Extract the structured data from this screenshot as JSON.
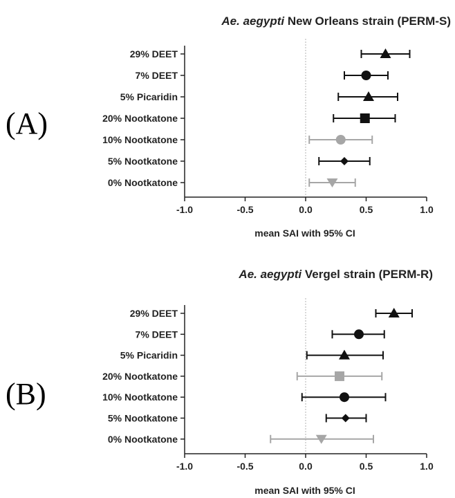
{
  "chart_data": [
    {
      "type": "forest",
      "panel_label": "(A)",
      "title_italic": "Ae. aegypti",
      "title_rest": " New Orleans strain (PERM-S)",
      "xlabel": "mean SAI with 95% CI",
      "xlim": [
        -1.0,
        1.0
      ],
      "xticks": [
        "-1.0",
        "-0.5",
        "0.0",
        "0.5",
        "1.0"
      ],
      "reference_line": 0.0,
      "series": [
        {
          "name": "29% DEET",
          "mean": 0.66,
          "lower": 0.46,
          "upper": 0.86,
          "marker": "triangle",
          "color": "#111111"
        },
        {
          "name": "7% DEET",
          "mean": 0.5,
          "lower": 0.32,
          "upper": 0.68,
          "marker": "circle",
          "color": "#111111"
        },
        {
          "name": "5% Picaridin",
          "mean": 0.52,
          "lower": 0.27,
          "upper": 0.76,
          "marker": "triangle",
          "color": "#111111"
        },
        {
          "name": "20% Nootkatone",
          "mean": 0.49,
          "lower": 0.23,
          "upper": 0.74,
          "marker": "square",
          "color": "#111111"
        },
        {
          "name": "10% Nootkatone",
          "mean": 0.29,
          "lower": 0.03,
          "upper": 0.55,
          "marker": "circle",
          "color": "#a6a6a6"
        },
        {
          "name": "5% Nootkatone",
          "mean": 0.32,
          "lower": 0.11,
          "upper": 0.53,
          "marker": "diamond",
          "color": "#111111"
        },
        {
          "name": "0% Nootkatone",
          "mean": 0.22,
          "lower": 0.03,
          "upper": 0.41,
          "marker": "triangle-down",
          "color": "#a6a6a6"
        }
      ]
    },
    {
      "type": "forest",
      "panel_label": "(B)",
      "title_italic": "Ae. aegypti",
      "title_rest": " Vergel strain (PERM-R)",
      "xlabel": "mean SAI with 95% CI",
      "xlim": [
        -1.0,
        1.0
      ],
      "xticks": [
        "-1.0",
        "-0.5",
        "0.0",
        "0.5",
        "1.0"
      ],
      "reference_line": 0.0,
      "series": [
        {
          "name": "29% DEET",
          "mean": 0.73,
          "lower": 0.58,
          "upper": 0.88,
          "marker": "triangle",
          "color": "#111111"
        },
        {
          "name": "7% DEET",
          "mean": 0.44,
          "lower": 0.22,
          "upper": 0.65,
          "marker": "circle",
          "color": "#111111"
        },
        {
          "name": "5% Picaridin",
          "mean": 0.32,
          "lower": 0.01,
          "upper": 0.64,
          "marker": "triangle",
          "color": "#111111"
        },
        {
          "name": "20% Nootkatone",
          "mean": 0.28,
          "lower": -0.07,
          "upper": 0.63,
          "marker": "square",
          "color": "#a6a6a6"
        },
        {
          "name": "10% Nootkatone",
          "mean": 0.32,
          "lower": -0.03,
          "upper": 0.66,
          "marker": "circle",
          "color": "#111111"
        },
        {
          "name": "5% Nootkatone",
          "mean": 0.33,
          "lower": 0.17,
          "upper": 0.5,
          "marker": "diamond",
          "color": "#111111"
        },
        {
          "name": "0% Nootkatone",
          "mean": 0.13,
          "lower": -0.29,
          "upper": 0.56,
          "marker": "triangle-down",
          "color": "#a6a6a6"
        }
      ]
    }
  ]
}
